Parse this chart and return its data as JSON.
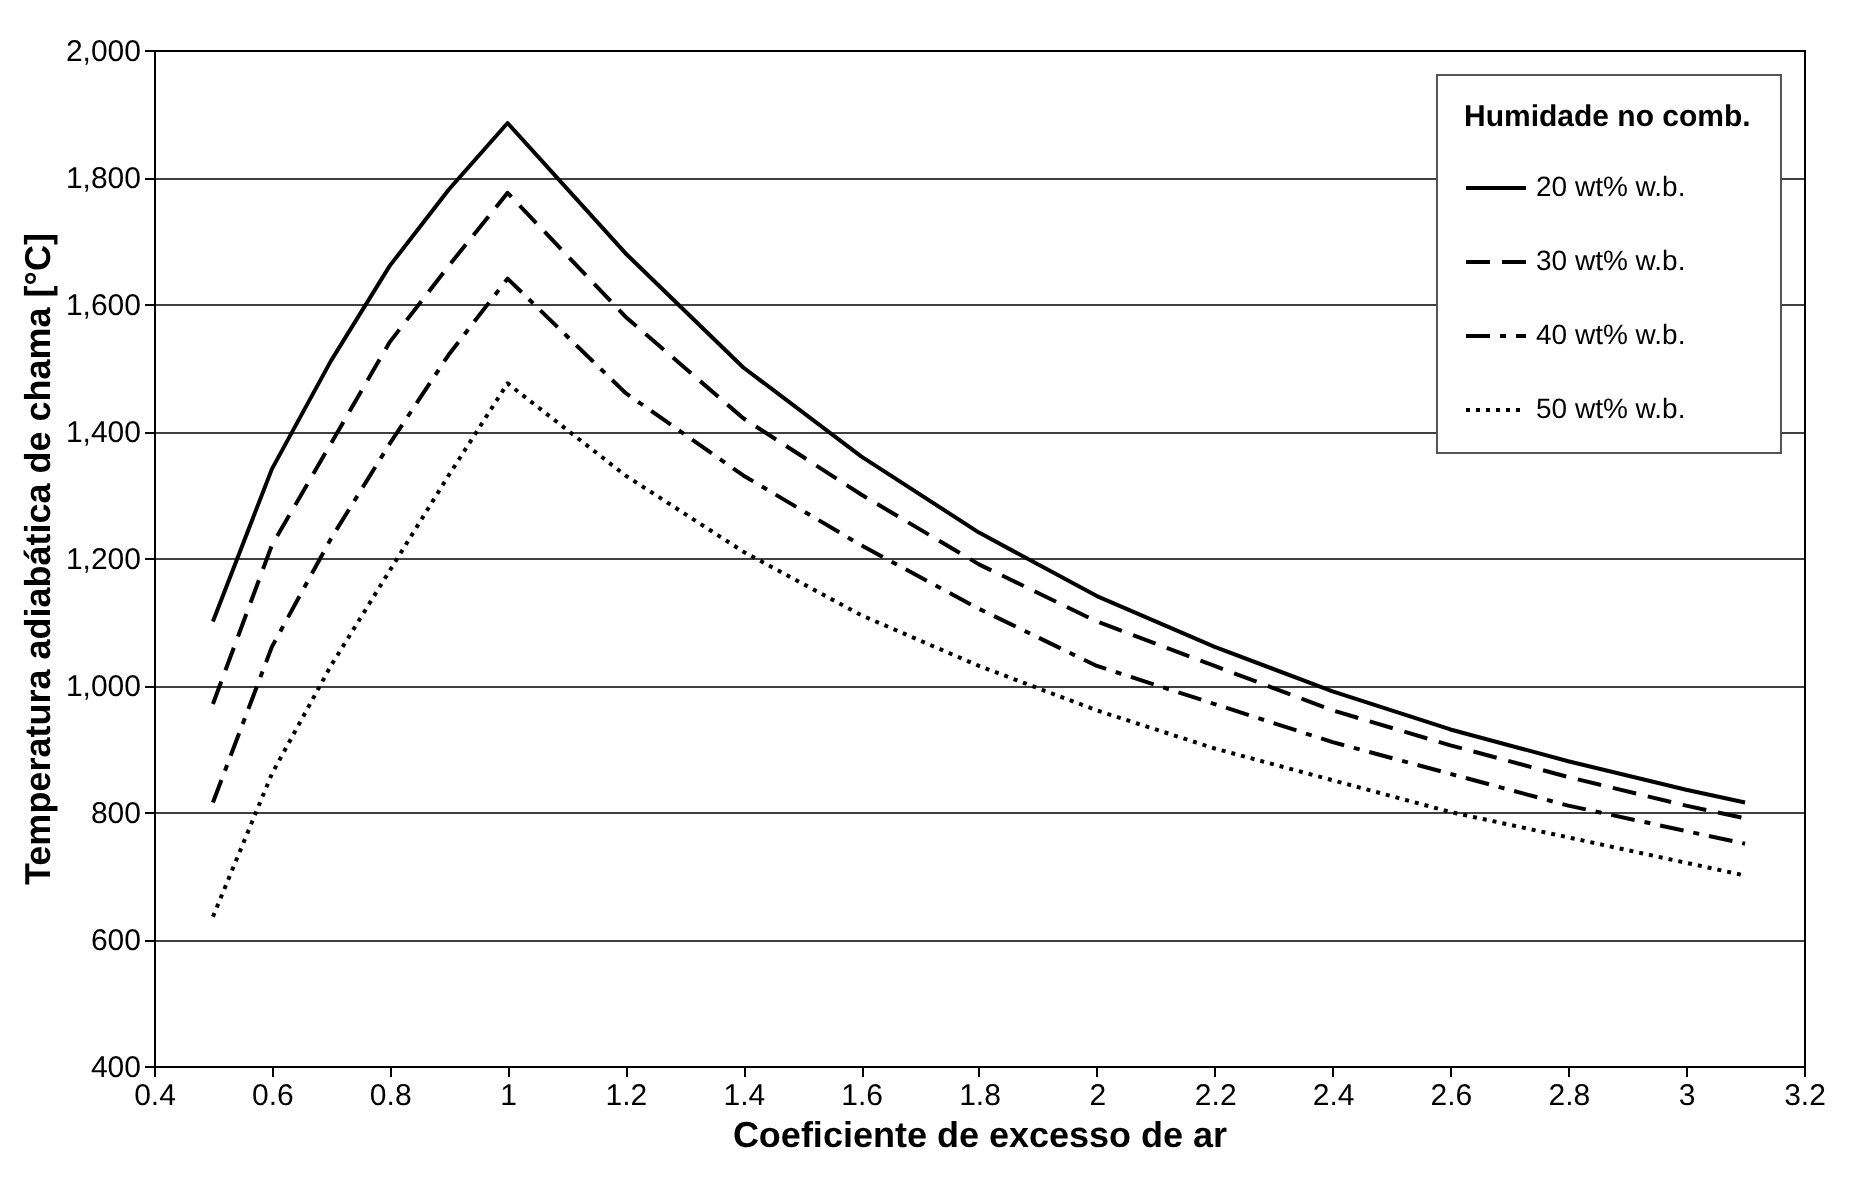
{
  "chart_data": {
    "type": "line",
    "xlabel": "Coeficiente de excesso de ar",
    "ylabel": "Temperatura adiabática de chama [°C]",
    "legend_title": "Humidade no comb.",
    "x": [
      0.5,
      0.6,
      0.7,
      0.8,
      0.9,
      1.0,
      1.2,
      1.4,
      1.6,
      1.8,
      2.0,
      2.2,
      2.4,
      2.6,
      2.8,
      3.0,
      3.1
    ],
    "series": [
      {
        "name": "20 wt% w.b.",
        "color": "#000000",
        "line_style": "solid",
        "values": [
          1100,
          1340,
          1510,
          1660,
          1780,
          1885,
          1680,
          1500,
          1360,
          1240,
          1140,
          1060,
          990,
          930,
          880,
          835,
          815
        ]
      },
      {
        "name": "30 wt% w.b.",
        "color": "#000000",
        "line_style": "dashed",
        "values": [
          970,
          1220,
          1380,
          1540,
          1660,
          1775,
          1580,
          1420,
          1300,
          1190,
          1100,
          1030,
          960,
          905,
          855,
          810,
          790
        ]
      },
      {
        "name": "40 wt% w.b.",
        "color": "#000000",
        "line_style": "dashdot",
        "values": [
          815,
          1060,
          1230,
          1380,
          1520,
          1640,
          1460,
          1330,
          1220,
          1120,
          1030,
          970,
          910,
          860,
          810,
          770,
          750
        ]
      },
      {
        "name": "50 wt% w.b.",
        "color": "#000000",
        "line_style": "dotted",
        "values": [
          635,
          860,
          1030,
          1180,
          1330,
          1475,
          1330,
          1210,
          1110,
          1030,
          960,
          900,
          850,
          800,
          760,
          720,
          700
        ]
      }
    ],
    "xlim": [
      0.4,
      3.2
    ],
    "xticks": [
      0.4,
      0.6,
      0.8,
      1,
      1.2,
      1.4,
      1.6,
      1.8,
      2,
      2.2,
      2.4,
      2.6,
      2.8,
      3,
      3.2
    ],
    "ylim": [
      400,
      2000
    ],
    "yticks": [
      {
        "value": 400,
        "label": "400"
      },
      {
        "value": 600,
        "label": "600"
      },
      {
        "value": 800,
        "label": "800"
      },
      {
        "value": 1000,
        "label": "1,000"
      },
      {
        "value": 1200,
        "label": "1,200"
      },
      {
        "value": 1400,
        "label": "1,400"
      },
      {
        "value": 1600,
        "label": "1,600"
      },
      {
        "value": 1800,
        "label": "1,800"
      },
      {
        "value": 2000,
        "label": "2,000"
      }
    ],
    "grid": "y",
    "legend": "top right"
  }
}
